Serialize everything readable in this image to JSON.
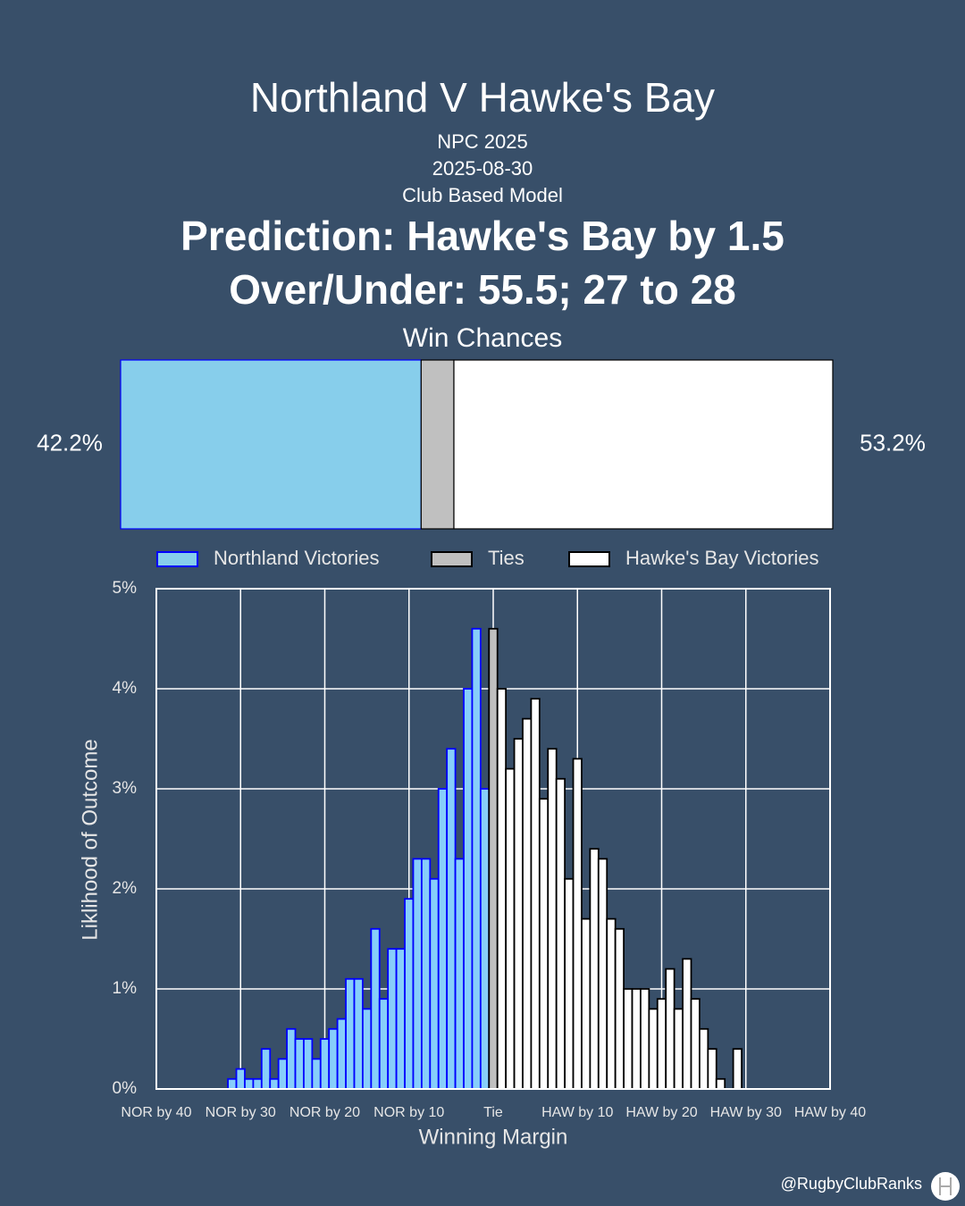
{
  "header": {
    "title": "Northland V Hawke's Bay",
    "competition": "NPC 2025",
    "date": "2025-08-30",
    "model": "Club Based Model",
    "prediction": "Prediction: Hawke's Bay by 1.5",
    "over_under": "Over/Under: 55.5; 27 to 28"
  },
  "chart_data": [
    {
      "type": "stacked-bar",
      "title": "Win Chances",
      "xlim": [
        0,
        100
      ],
      "series": [
        {
          "name": "Northland Victories",
          "color": "#87ceeb",
          "edge": "#0000ff",
          "values": [
            42.2
          ],
          "value_labels": [
            "42.2%"
          ]
        },
        {
          "name": "Ties",
          "color": "#c0c0c0",
          "edge": "#000000",
          "values": [
            4.6
          ]
        },
        {
          "name": "Hawke's Bay Victories",
          "color": "#ffffff",
          "edge": "#000000",
          "values": [
            53.2
          ],
          "value_labels": [
            "53.2%"
          ]
        }
      ]
    },
    {
      "type": "histogram",
      "xlabel": "Winning Margin",
      "ylabel": "Liklihood of Outcome",
      "xlim": [
        -40,
        40
      ],
      "ylim": [
        0,
        5
      ],
      "grid": true,
      "xticks": [
        {
          "value": -40,
          "label": "NOR by 40"
        },
        {
          "value": -30,
          "label": "NOR by 30"
        },
        {
          "value": -20,
          "label": "NOR by 20"
        },
        {
          "value": -10,
          "label": "NOR by 10"
        },
        {
          "value": 0,
          "label": "Tie"
        },
        {
          "value": 10,
          "label": "HAW by 10"
        },
        {
          "value": 20,
          "label": "HAW by 20"
        },
        {
          "value": 30,
          "label": "HAW by 30"
        },
        {
          "value": 40,
          "label": "HAW by 40"
        }
      ],
      "yticks": [
        {
          "value": 0,
          "label": "0%"
        },
        {
          "value": 1,
          "label": "1%"
        },
        {
          "value": 2,
          "label": "2%"
        },
        {
          "value": 3,
          "label": "3%"
        },
        {
          "value": 4,
          "label": "4%"
        },
        {
          "value": 5,
          "label": "5%"
        }
      ],
      "series": [
        {
          "color": "#87cefa",
          "edge": "#0000ff",
          "x": [
            -31,
            -30,
            -29,
            -28,
            -27,
            -26,
            -25,
            -24,
            -23,
            -22,
            -21,
            -20,
            -19,
            -18,
            -17,
            -16,
            -15,
            -14,
            -13,
            -12,
            -11,
            -10,
            -9,
            -8,
            -7,
            -6,
            -5,
            -4,
            -3,
            -2,
            -1
          ],
          "values": [
            0.1,
            0.2,
            0.1,
            0.1,
            0.4,
            0.1,
            0.3,
            0.6,
            0.5,
            0.5,
            0.3,
            0.5,
            0.6,
            0.7,
            1.1,
            1.1,
            0.8,
            1.6,
            0.9,
            1.4,
            1.4,
            1.9,
            2.3,
            2.3,
            2.1,
            3.0,
            3.4,
            2.3,
            4.0,
            4.6,
            3.0
          ]
        },
        {
          "color": "#c0c0c0",
          "edge": "#000000",
          "x": [
            0
          ],
          "values": [
            4.6
          ]
        },
        {
          "color": "#ffffff",
          "edge": "#000000",
          "x": [
            1,
            2,
            3,
            4,
            5,
            6,
            7,
            8,
            9,
            10,
            11,
            12,
            13,
            14,
            15,
            16,
            17,
            18,
            19,
            20,
            21,
            22,
            23,
            24,
            25,
            26,
            27,
            28,
            29
          ],
          "values": [
            4.0,
            3.2,
            3.5,
            3.7,
            3.9,
            2.9,
            3.4,
            3.1,
            2.1,
            3.3,
            1.7,
            2.4,
            2.3,
            1.7,
            1.6,
            1.0,
            1.0,
            1.0,
            0.8,
            0.9,
            1.2,
            0.8,
            1.3,
            0.9,
            0.6,
            0.4,
            0.1,
            0,
            0.4
          ]
        }
      ]
    }
  ],
  "footer": "@RugbyClubRanks"
}
